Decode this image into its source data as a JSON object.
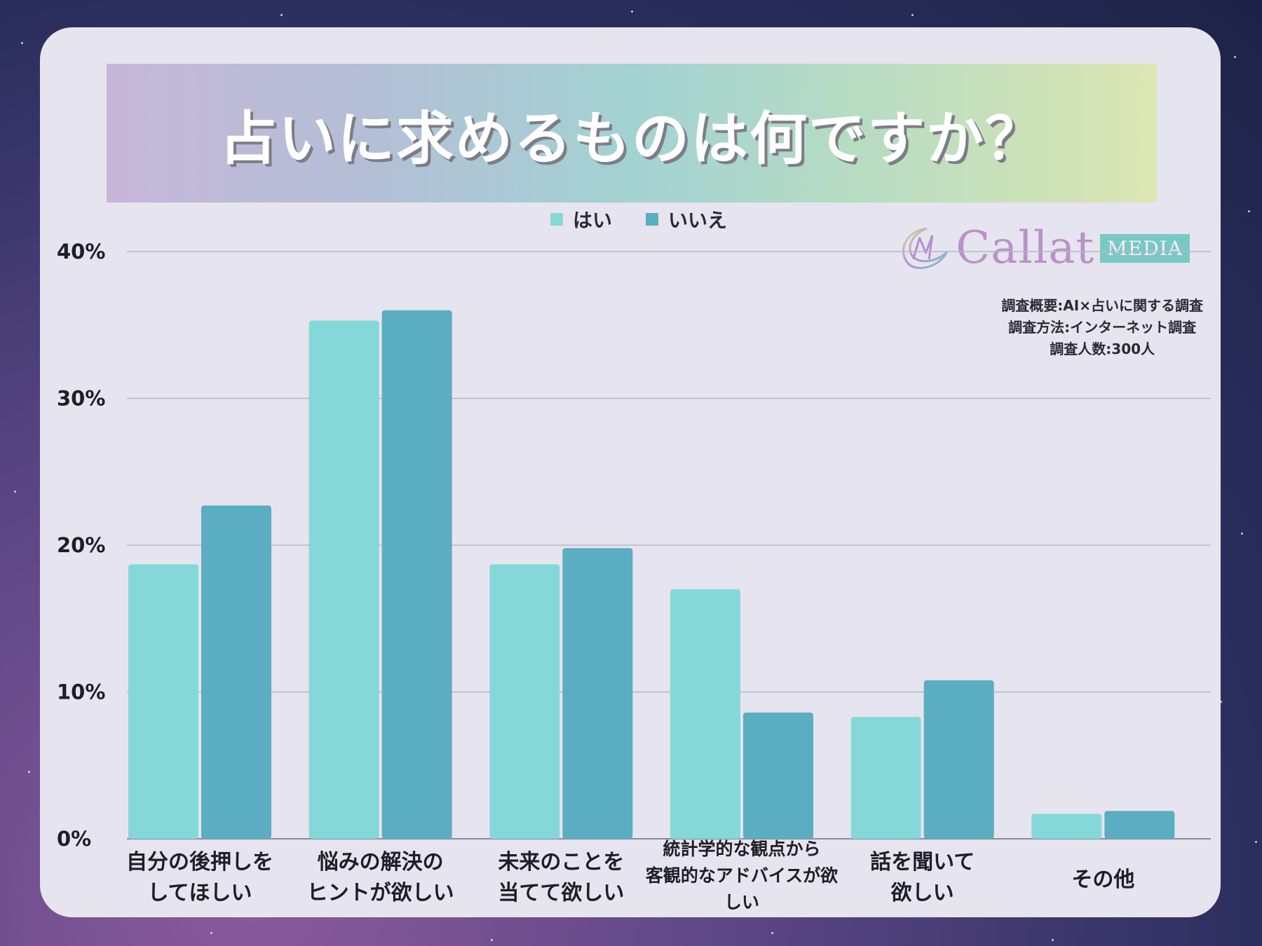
{
  "title": "占いに求めるものは何ですか？",
  "logo": {
    "text": "Callat",
    "badge": "MEDIA"
  },
  "survey_info": [
    "調査概要:AI×占いに関する調査",
    "調査方法:インターネット調査",
    "調査人数:300人"
  ],
  "colors": {
    "yes": "#84d9d8",
    "no": "#5badc1",
    "grid": "#b8b6c6",
    "axis": "#8c8a9a"
  },
  "chart_data": {
    "type": "bar",
    "title": "占いに求めるものは何ですか？",
    "categories": [
      [
        "自分の後押しを",
        "してほしい"
      ],
      [
        "悩みの解決の",
        "ヒントが欲しい"
      ],
      [
        "未来のことを",
        "当てて欲しい"
      ],
      [
        "統計学的な観点から",
        "客観的なアドバイスが欲",
        "しい"
      ],
      [
        "話を聞いて",
        "欲しい"
      ],
      [
        "その他"
      ]
    ],
    "series": [
      {
        "name": "はい",
        "values": [
          18.7,
          35.3,
          18.7,
          17.0,
          8.3,
          1.7
        ]
      },
      {
        "name": "いいえ",
        "values": [
          22.7,
          36.0,
          19.8,
          8.6,
          10.8,
          1.9
        ]
      }
    ],
    "y_ticks": [
      "0%",
      "10%",
      "20%",
      "30%",
      "40%"
    ],
    "ylim": [
      0,
      40
    ],
    "legend": "top-center"
  }
}
